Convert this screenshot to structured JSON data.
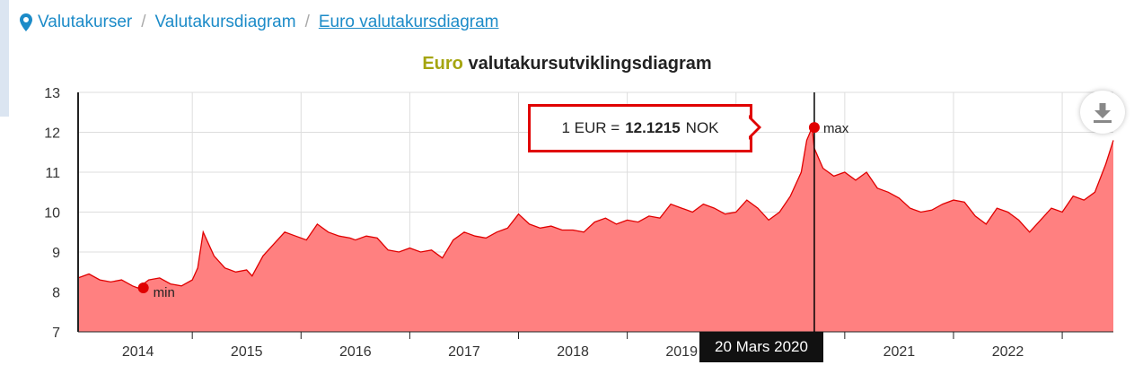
{
  "breadcrumb": {
    "items": [
      {
        "label": "Valutakurser"
      },
      {
        "label": "Valutakursdiagram"
      },
      {
        "label": "Euro valutakursdiagram"
      }
    ],
    "separator": "/"
  },
  "title": {
    "accent": "Euro",
    "rest": "valutakursutviklingsdiagram"
  },
  "tooltip": {
    "prefix": "1 EUR = ",
    "value": "12.1215",
    "suffix": " NOK"
  },
  "crosshair_label": "20 Mars 2020",
  "markers": {
    "min_label": "min",
    "max_label": "max"
  },
  "download_icon": "download-icon",
  "colors": {
    "line": "#e00000",
    "fill": "#ff8080",
    "accent": "#a5a510",
    "link": "#1c8bc8"
  },
  "chart_data": {
    "type": "area",
    "title": "",
    "xlabel": "",
    "ylabel": "",
    "ylim": [
      7,
      13
    ],
    "yticks": [
      7,
      8,
      9,
      10,
      11,
      12,
      13
    ],
    "xticks": [
      "2014",
      "2015",
      "2016",
      "2017",
      "2018",
      "2019",
      "2020",
      "2021",
      "2022"
    ],
    "grid": true,
    "series": [
      {
        "x": [
          2013.45,
          2013.55,
          2013.65,
          2013.75,
          2013.85,
          2013.95,
          2014.0,
          2014.1,
          2014.2,
          2014.3,
          2014.4,
          2014.5,
          2014.55,
          2014.6,
          2014.7,
          2014.8,
          2014.9,
          2015.0,
          2015.05,
          2015.15,
          2015.25,
          2015.35,
          2015.45,
          2015.55,
          2015.65,
          2015.75,
          2015.85,
          2015.95,
          2016.0,
          2016.1,
          2016.2,
          2016.3,
          2016.4,
          2016.5,
          2016.6,
          2016.7,
          2016.8,
          2016.9,
          2017.0,
          2017.1,
          2017.2,
          2017.3,
          2017.4,
          2017.5,
          2017.6,
          2017.7,
          2017.8,
          2017.9,
          2018.0,
          2018.1,
          2018.2,
          2018.3,
          2018.4,
          2018.5,
          2018.6,
          2018.7,
          2018.8,
          2018.9,
          2019.0,
          2019.1,
          2019.2,
          2019.3,
          2019.4,
          2019.5,
          2019.6,
          2019.7,
          2019.8,
          2019.9,
          2020.0,
          2020.1,
          2020.15,
          2020.2,
          2020.22,
          2020.3,
          2020.4,
          2020.5,
          2020.6,
          2020.7,
          2020.8,
          2020.9,
          2021.0,
          2021.1,
          2021.2,
          2021.3,
          2021.4,
          2021.5,
          2021.6,
          2021.7,
          2021.8,
          2021.9,
          2022.0,
          2022.1,
          2022.2,
          2022.3,
          2022.4,
          2022.5,
          2022.6,
          2022.7,
          2022.8,
          2022.9,
          2022.97
        ],
        "values": [
          8.35,
          8.45,
          8.3,
          8.25,
          8.3,
          8.15,
          8.1,
          8.3,
          8.35,
          8.2,
          8.15,
          8.3,
          8.6,
          9.5,
          8.9,
          8.6,
          8.5,
          8.55,
          8.4,
          8.9,
          9.2,
          9.5,
          9.4,
          9.3,
          9.7,
          9.5,
          9.4,
          9.35,
          9.3,
          9.4,
          9.35,
          9.05,
          9.0,
          9.1,
          9.0,
          9.05,
          8.85,
          9.3,
          9.5,
          9.4,
          9.35,
          9.5,
          9.6,
          9.95,
          9.7,
          9.6,
          9.65,
          9.55,
          9.55,
          9.5,
          9.75,
          9.85,
          9.7,
          9.8,
          9.75,
          9.9,
          9.85,
          10.2,
          10.1,
          10.0,
          10.2,
          10.1,
          9.95,
          10.0,
          10.3,
          10.1,
          9.8,
          10.0,
          10.4,
          11.0,
          11.8,
          12.1215,
          11.6,
          11.1,
          10.9,
          11.0,
          10.8,
          11.0,
          10.6,
          10.5,
          10.35,
          10.1,
          10.0,
          10.05,
          10.2,
          10.3,
          10.25,
          9.9,
          9.7,
          10.1,
          10.0,
          9.8,
          9.5,
          9.8,
          10.1,
          10.0,
          10.4,
          10.3,
          10.5,
          11.2,
          11.8
        ]
      }
    ],
    "min": {
      "x": 2014.05,
      "y": 8.1,
      "label": "min"
    },
    "max": {
      "x": 2020.22,
      "y": 12.1215,
      "label": "max"
    },
    "crosshair_x": 2020.22
  }
}
